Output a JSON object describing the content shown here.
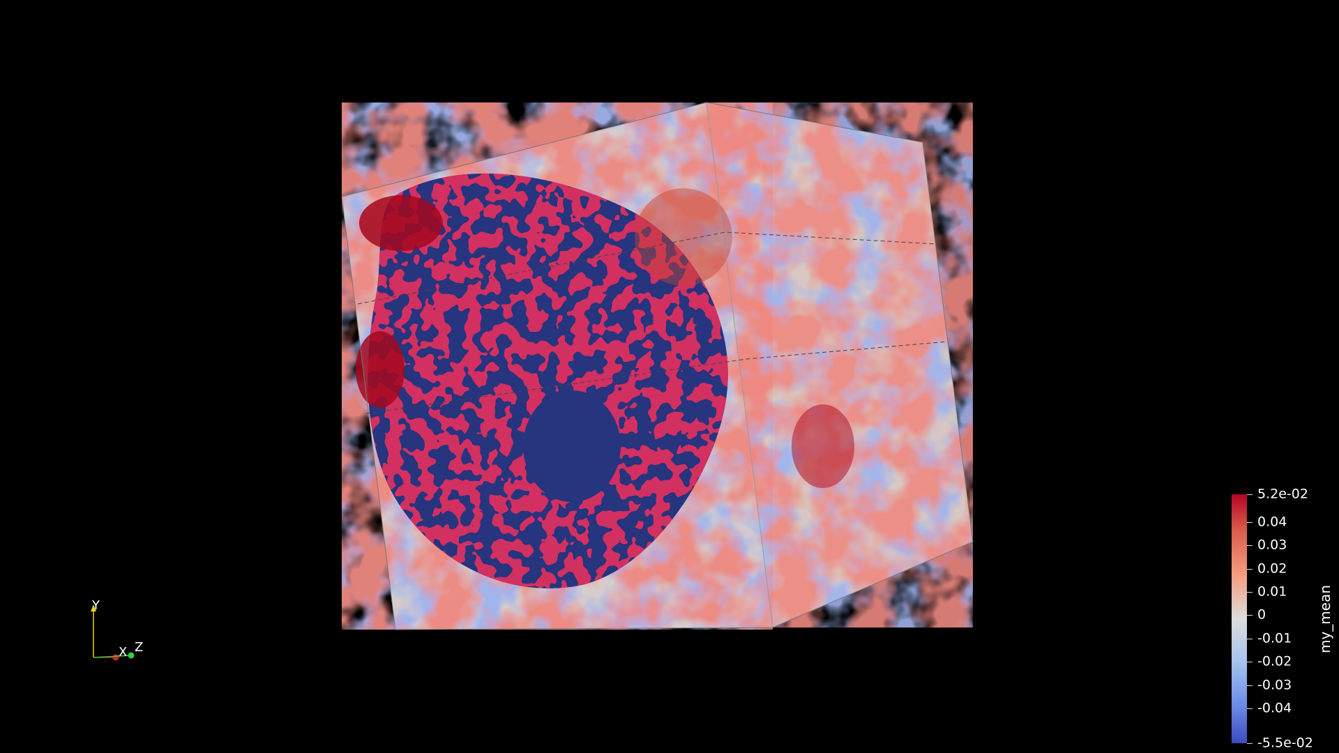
{
  "colorbar": {
    "title": "my_mean",
    "labels": [
      "5.2e-02",
      "0.04",
      "0.03",
      "0.02",
      "0.01",
      "0",
      "-0.01",
      "-0.02",
      "-0.03",
      "-0.04",
      "-5.5e-02"
    ],
    "values": [
      0.052,
      0.04,
      0.03,
      0.02,
      0.01,
      0,
      -0.01,
      -0.02,
      -0.03,
      -0.04,
      -0.055
    ],
    "range": [
      -0.055,
      0.052
    ],
    "colors": {
      "high": "#b40426",
      "mid": "#dddcdc",
      "low": "#3b4cc0"
    }
  },
  "axes": {
    "x": "X",
    "y": "Y",
    "z": "Z",
    "colors": {
      "x": "#d42020",
      "y": "#e6d21e",
      "z": "#2ecc40"
    }
  },
  "volume": {
    "field": "my_mean",
    "colormap": "Cool to Warm",
    "background": "#000000"
  }
}
